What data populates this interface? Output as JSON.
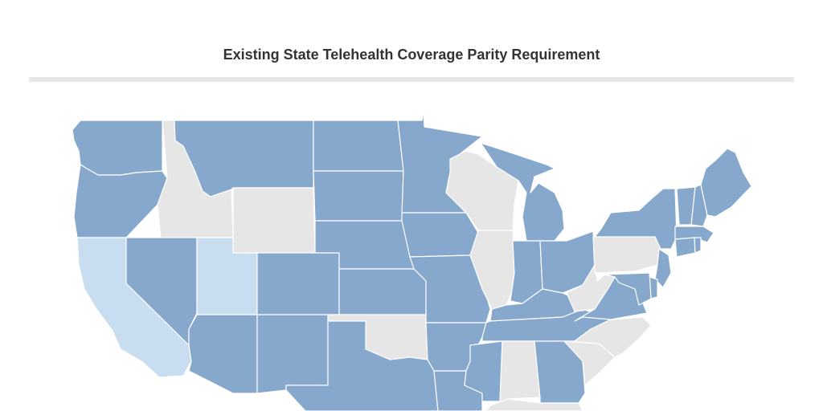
{
  "title": "Existing State Telehealth Coverage Parity Requirement",
  "colors": {
    "full": "#86a8cc",
    "partial": "#c9ddf1",
    "none": "#e6e6e6",
    "divider": "#e6e6e6",
    "border": "#ffffff"
  },
  "states": [
    {
      "name": "WA",
      "category": "full"
    },
    {
      "name": "OR",
      "category": "full"
    },
    {
      "name": "CA",
      "category": "partial"
    },
    {
      "name": "ID",
      "category": "none"
    },
    {
      "name": "NV",
      "category": "full"
    },
    {
      "name": "UT",
      "category": "partial"
    },
    {
      "name": "AZ",
      "category": "full"
    },
    {
      "name": "MT",
      "category": "full"
    },
    {
      "name": "WY",
      "category": "none"
    },
    {
      "name": "CO",
      "category": "full"
    },
    {
      "name": "NM",
      "category": "full"
    },
    {
      "name": "ND",
      "category": "full"
    },
    {
      "name": "SD",
      "category": "full"
    },
    {
      "name": "NE",
      "category": "full"
    },
    {
      "name": "KS",
      "category": "full"
    },
    {
      "name": "OK",
      "category": "none"
    },
    {
      "name": "TX",
      "category": "full"
    },
    {
      "name": "MN",
      "category": "full"
    },
    {
      "name": "IA",
      "category": "full"
    },
    {
      "name": "MO",
      "category": "full"
    },
    {
      "name": "AR",
      "category": "full"
    },
    {
      "name": "LA",
      "category": "full"
    },
    {
      "name": "WI",
      "category": "none"
    },
    {
      "name": "IL",
      "category": "none"
    },
    {
      "name": "MI",
      "category": "full"
    },
    {
      "name": "IN",
      "category": "full"
    },
    {
      "name": "OH",
      "category": "full"
    },
    {
      "name": "KY",
      "category": "full"
    },
    {
      "name": "TN",
      "category": "full"
    },
    {
      "name": "MS",
      "category": "full"
    },
    {
      "name": "AL",
      "category": "none"
    },
    {
      "name": "GA",
      "category": "full"
    },
    {
      "name": "FL",
      "category": "none"
    },
    {
      "name": "SC",
      "category": "none"
    },
    {
      "name": "NC",
      "category": "none"
    },
    {
      "name": "VA",
      "category": "full"
    },
    {
      "name": "WV",
      "category": "none"
    },
    {
      "name": "PA",
      "category": "none"
    },
    {
      "name": "NY",
      "category": "full"
    },
    {
      "name": "NJ",
      "category": "full"
    },
    {
      "name": "DE",
      "category": "full"
    },
    {
      "name": "MD",
      "category": "full"
    },
    {
      "name": "VT",
      "category": "full"
    },
    {
      "name": "NH",
      "category": "full"
    },
    {
      "name": "ME",
      "category": "full"
    },
    {
      "name": "MA",
      "category": "full"
    },
    {
      "name": "CT",
      "category": "full"
    },
    {
      "name": "RI",
      "category": "full"
    }
  ]
}
